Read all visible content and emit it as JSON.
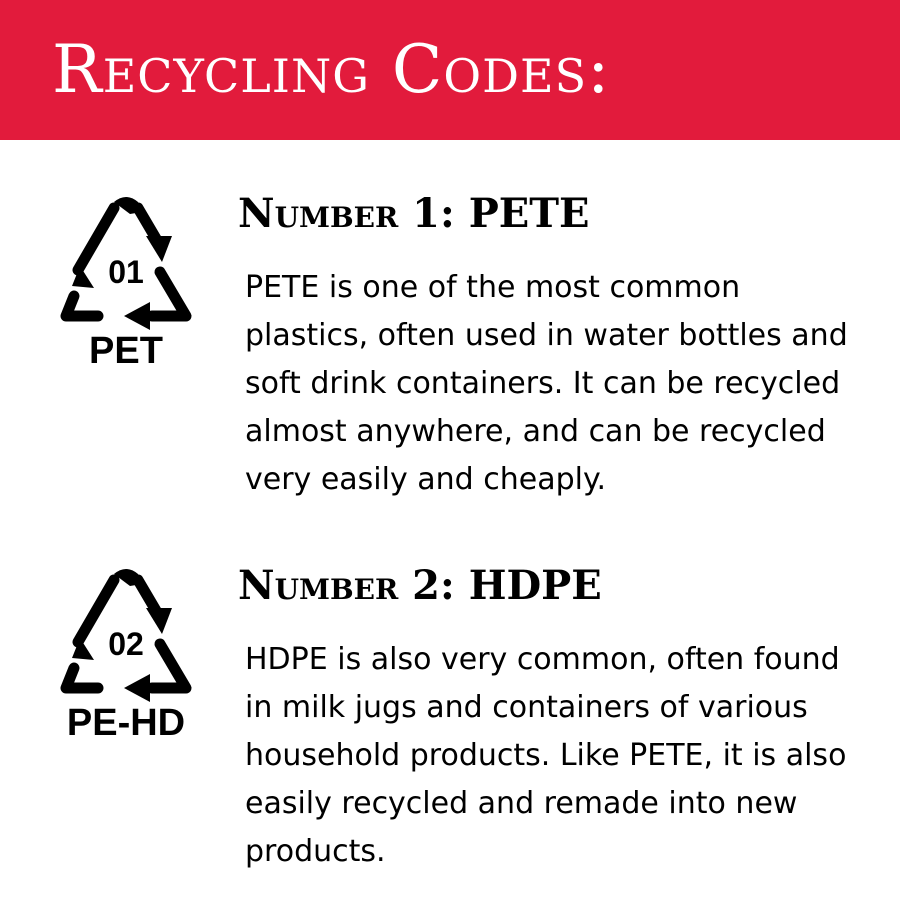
{
  "header": {
    "title": "Recycling Codes:"
  },
  "colors": {
    "banner": "#e21b3c",
    "text": "#000000"
  },
  "codes": [
    {
      "code": "01",
      "label": "PET",
      "title": "Number 1: PETE",
      "body": "PETE is one of the most common plastics, often used in water bottles and soft drink containers. It can be recycled almost anywhere, and can be recycled very easily and cheaply.",
      "icon": "recycle-triangle-icon"
    },
    {
      "code": "02",
      "label": "PE-HD",
      "title": "Number 2: HDPE",
      "body": "HDPE is also very common, often found in milk jugs and containers of various household products. Like PETE, it is also easily recycled and remade into new products.",
      "icon": "recycle-triangle-icon"
    }
  ]
}
